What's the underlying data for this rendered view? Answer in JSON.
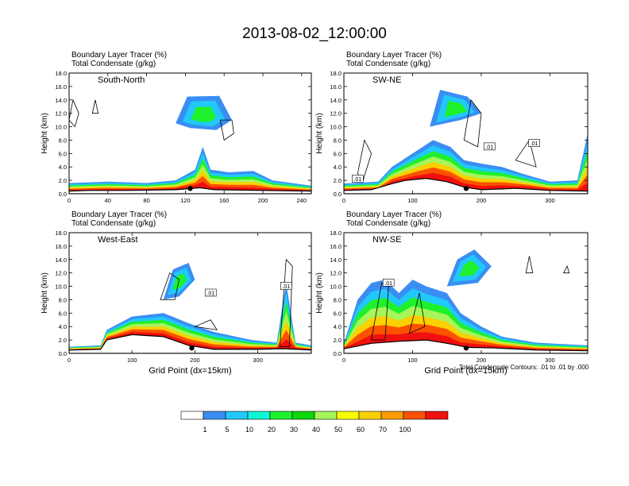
{
  "figure": {
    "title": "2013-08-02_12:00:00",
    "footnote": "Total Condensate Contours: .01 to .01 by .000",
    "legend_labels": [
      "1",
      "5",
      "10",
      "20",
      "30",
      "40",
      "50",
      "60",
      "70",
      "100"
    ],
    "legend_colors": [
      "#ffffff",
      "#3a8ef3",
      "#21c8fb",
      "#0ef7d6",
      "#1ff02c",
      "#0dd70d",
      "#a6f55a",
      "#fafa00",
      "#fbd000",
      "#fb9b00",
      "#fb5200",
      "#f01010"
    ]
  },
  "chart_data": [
    {
      "type": "heatmap",
      "header": [
        "Boundary Layer Tracer   (%)",
        "Total Condensate   (g/kg)"
      ],
      "label": "South-North",
      "xlabel": "",
      "ylabel": "Height (km)",
      "xlim": [
        0,
        250
      ],
      "ylim": [
        0,
        18
      ],
      "xticks": [
        "0",
        "40",
        "80",
        "120",
        "160",
        "200",
        "240"
      ],
      "yticks": [
        "0.0",
        "2.0",
        "4.0",
        "6.0",
        "8.0",
        "10.0",
        "12.0",
        "14.0",
        "16.0",
        "18.0"
      ],
      "terrain": [
        [
          0,
          0.4
        ],
        [
          20,
          0.5
        ],
        [
          60,
          0.5
        ],
        [
          110,
          0.6
        ],
        [
          135,
          0.9
        ],
        [
          150,
          0.6
        ],
        [
          200,
          0.5
        ],
        [
          250,
          0.4
        ]
      ],
      "tracer_top": [
        [
          0,
          1.6
        ],
        [
          40,
          1.8
        ],
        [
          80,
          1.6
        ],
        [
          110,
          2.0
        ],
        [
          130,
          3.6
        ],
        [
          138,
          7.0
        ],
        [
          146,
          3.6
        ],
        [
          165,
          3.2
        ],
        [
          190,
          3.4
        ],
        [
          210,
          2.0
        ],
        [
          250,
          1.2
        ]
      ],
      "upper_clouds": [
        [
          [
            110,
            10.5
          ],
          [
            122,
            14.5
          ],
          [
            155,
            14.6
          ],
          [
            168,
            11.0
          ],
          [
            152,
            9.5
          ],
          [
            125,
            9.8
          ]
        ]
      ],
      "contours": [
        [
          [
            0,
            11
          ],
          [
            4,
            14
          ],
          [
            10,
            12
          ],
          [
            6,
            10
          ]
        ],
        [
          [
            24,
            12
          ],
          [
            27,
            14
          ],
          [
            30,
            12
          ]
        ],
        [
          [
            156,
            11
          ],
          [
            168,
            11
          ],
          [
            170,
            9
          ],
          [
            160,
            8
          ]
        ]
      ],
      "box_labels": [],
      "marker_x": 125
    },
    {
      "type": "heatmap",
      "header": [
        "Boundary Layer Tracer   (%)",
        "Total Condensate   (g/kg)"
      ],
      "label": "SW-NE",
      "xlabel": "",
      "ylabel": "Height (km)",
      "xlim": [
        0,
        355
      ],
      "ylim": [
        0,
        18
      ],
      "xticks": [
        "0",
        "100",
        "200",
        "300"
      ],
      "yticks": [
        "0.0",
        "2.0",
        "4.0",
        "6.0",
        "8.0",
        "10.0",
        "12.0",
        "14.0",
        "16.0",
        "18.0"
      ],
      "terrain": [
        [
          0,
          0.5
        ],
        [
          40,
          0.6
        ],
        [
          70,
          1.5
        ],
        [
          90,
          2.0
        ],
        [
          120,
          2.3
        ],
        [
          150,
          1.8
        ],
        [
          175,
          1.0
        ],
        [
          200,
          0.6
        ],
        [
          250,
          0.8
        ],
        [
          300,
          0.5
        ],
        [
          355,
          0.4
        ]
      ],
      "tracer_top": [
        [
          0,
          1.5
        ],
        [
          50,
          1.8
        ],
        [
          70,
          4.0
        ],
        [
          100,
          6.0
        ],
        [
          130,
          8.0
        ],
        [
          155,
          7.0
        ],
        [
          175,
          5.0
        ],
        [
          200,
          4.5
        ],
        [
          230,
          4.0
        ],
        [
          260,
          3.0
        ],
        [
          300,
          1.8
        ],
        [
          340,
          2.0
        ],
        [
          355,
          9.0
        ]
      ],
      "upper_clouds": [
        [
          [
            125,
            10
          ],
          [
            140,
            15.5
          ],
          [
            180,
            14.5
          ],
          [
            200,
            12.0
          ],
          [
            170,
            11.0
          ]
        ]
      ],
      "contours": [
        [
          [
            20,
            3
          ],
          [
            30,
            8
          ],
          [
            40,
            6
          ],
          [
            28,
            2
          ]
        ],
        [
          [
            175,
            8
          ],
          [
            185,
            14
          ],
          [
            200,
            12
          ],
          [
            195,
            7
          ]
        ],
        [
          [
            250,
            5
          ],
          [
            270,
            8
          ],
          [
            280,
            4
          ]
        ]
      ],
      "box_labels": [
        [
          20,
          2.2,
          ".01"
        ],
        [
          212,
          7.0,
          ".01"
        ],
        [
          277,
          7.5,
          ".01"
        ]
      ],
      "marker_x": 178
    },
    {
      "type": "heatmap",
      "header": [
        "Boundary Layer Tracer   (%)",
        "Total Condensate   (g/kg)"
      ],
      "label": "West-East",
      "xlabel": "Grid Point (dx=15km)",
      "ylabel": "Height (km)",
      "xlim": [
        0,
        385
      ],
      "ylim": [
        0,
        18
      ],
      "xticks": [
        "0",
        "100",
        "200",
        "300"
      ],
      "yticks": [
        "0.0",
        "2.0",
        "4.0",
        "6.0",
        "8.0",
        "10.0",
        "12.0",
        "14.0",
        "16.0",
        "18.0"
      ],
      "terrain": [
        [
          0,
          0.5
        ],
        [
          50,
          0.6
        ],
        [
          60,
          2.0
        ],
        [
          100,
          2.8
        ],
        [
          150,
          2.5
        ],
        [
          190,
          1.2
        ],
        [
          230,
          0.6
        ],
        [
          300,
          0.6
        ],
        [
          340,
          0.7
        ],
        [
          385,
          0.5
        ]
      ],
      "tracer_top": [
        [
          0,
          1.0
        ],
        [
          50,
          1.2
        ],
        [
          60,
          3.5
        ],
        [
          100,
          5.5
        ],
        [
          150,
          6.0
        ],
        [
          190,
          4.5
        ],
        [
          230,
          3.2
        ],
        [
          290,
          2.0
        ],
        [
          330,
          1.6
        ],
        [
          345,
          10.5
        ],
        [
          360,
          1.6
        ],
        [
          385,
          1.2
        ]
      ],
      "upper_clouds": [
        [
          [
            150,
            8.0
          ],
          [
            165,
            12.5
          ],
          [
            190,
            13.5
          ],
          [
            200,
            11.0
          ],
          [
            175,
            8.5
          ]
        ]
      ],
      "contours": [
        [
          [
            145,
            8
          ],
          [
            160,
            12
          ],
          [
            175,
            11
          ],
          [
            168,
            8
          ]
        ],
        [
          [
            200,
            4
          ],
          [
            225,
            5
          ],
          [
            235,
            3.5
          ]
        ],
        [
          [
            335,
            1
          ],
          [
            345,
            14
          ],
          [
            355,
            13
          ],
          [
            350,
            1
          ]
        ]
      ],
      "box_labels": [
        [
          225,
          9.0,
          ".01"
        ],
        [
          345,
          10.0,
          ".01"
        ]
      ],
      "marker_x": 195
    },
    {
      "type": "heatmap",
      "header": [
        "Boundary Layer Tracer   (%)",
        "Total Condensate   (g/kg)"
      ],
      "label": "NW-SE",
      "xlabel": "Grid Point (dx=15km)",
      "ylabel": "Height (km)",
      "xlim": [
        0,
        355
      ],
      "ylim": [
        0,
        18
      ],
      "xticks": [
        "0",
        "100",
        "200",
        "300"
      ],
      "yticks": [
        "0.0",
        "2.0",
        "4.0",
        "6.0",
        "8.0",
        "10.0",
        "12.0",
        "14.0",
        "16.0",
        "18.0"
      ],
      "terrain": [
        [
          0,
          0.7
        ],
        [
          40,
          1.5
        ],
        [
          80,
          1.8
        ],
        [
          120,
          2.0
        ],
        [
          150,
          1.5
        ],
        [
          180,
          0.9
        ],
        [
          220,
          0.8
        ],
        [
          280,
          0.5
        ],
        [
          355,
          0.4
        ]
      ],
      "tracer_top": [
        [
          0,
          1.5
        ],
        [
          20,
          8.0
        ],
        [
          40,
          10.5
        ],
        [
          60,
          11.0
        ],
        [
          80,
          9.0
        ],
        [
          100,
          11.0
        ],
        [
          120,
          10.0
        ],
        [
          150,
          9.0
        ],
        [
          170,
          6.0
        ],
        [
          200,
          4.0
        ],
        [
          230,
          2.5
        ],
        [
          280,
          1.6
        ],
        [
          355,
          1.2
        ]
      ],
      "upper_clouds": [
        [
          [
            150,
            10
          ],
          [
            165,
            14.0
          ],
          [
            190,
            15.5
          ],
          [
            215,
            13.0
          ],
          [
            195,
            10.5
          ]
        ]
      ],
      "contours": [
        [
          [
            40,
            2
          ],
          [
            55,
            10.5
          ],
          [
            65,
            10
          ],
          [
            60,
            2
          ]
        ],
        [
          [
            95,
            3
          ],
          [
            110,
            9
          ],
          [
            118,
            4
          ]
        ],
        [
          [
            265,
            12
          ],
          [
            270,
            14.5
          ],
          [
            275,
            12
          ]
        ],
        [
          [
            320,
            12
          ],
          [
            325,
            13
          ],
          [
            328,
            12
          ]
        ]
      ],
      "box_labels": [
        [
          65,
          10.5,
          ".01"
        ]
      ],
      "marker_x": 178
    }
  ]
}
